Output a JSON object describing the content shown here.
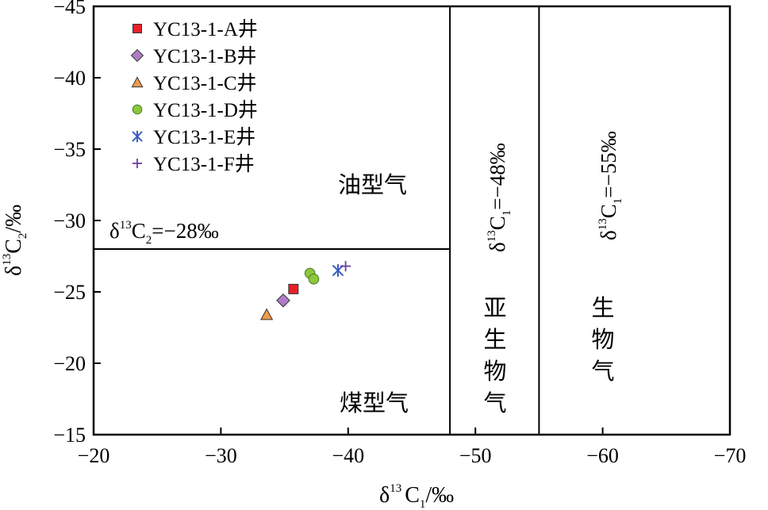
{
  "chart_data": {
    "type": "scatter",
    "xlim": [
      -20,
      -70
    ],
    "ylim": [
      -15,
      -45
    ],
    "x_ticks": [
      "−20",
      "−30",
      "−40",
      "−50",
      "−60",
      "−70"
    ],
    "y_ticks": [
      "−15",
      "−20",
      "−25",
      "−30",
      "−35",
      "−40",
      "−45"
    ],
    "x_tick_values": [
      -20,
      -30,
      -40,
      -50,
      -60,
      -70
    ],
    "y_tick_values": [
      -15,
      -20,
      -25,
      -30,
      -35,
      -40,
      -45
    ],
    "xlabel": {
      "delta": "δ",
      "sup": "13",
      "main": "C",
      "sub": "1",
      "unit": "/‰"
    },
    "ylabel": {
      "delta": "δ",
      "sup": "13",
      "main": "C",
      "sub": "2",
      "unit": "/‰"
    },
    "legend_position": "top-left",
    "series": [
      {
        "name": "YC13-1-A井",
        "marker": "square",
        "color": "#e8202a",
        "points": [
          [
            -35.7,
            -25.2
          ]
        ]
      },
      {
        "name": "YC13-1-B井",
        "marker": "diamond",
        "color": "#b07cc6",
        "points": [
          [
            -34.9,
            -24.4
          ]
        ]
      },
      {
        "name": "YC13-1-C井",
        "marker": "triangle",
        "color": "#f39a4a",
        "points": [
          [
            -33.6,
            -23.4
          ]
        ]
      },
      {
        "name": "YC13-1-D井",
        "marker": "circle",
        "color": "#8dc63f",
        "points": [
          [
            -37.0,
            -26.3
          ],
          [
            -37.3,
            -25.9
          ]
        ]
      },
      {
        "name": "YC13-1-E井",
        "marker": "asterisk",
        "color": "#3a5bbf",
        "points": [
          [
            -39.2,
            -26.5
          ]
        ]
      },
      {
        "name": "YC13-1-F井",
        "marker": "plus",
        "color": "#6a3fa0",
        "points": [
          [
            -39.8,
            -26.8
          ]
        ]
      }
    ],
    "reference_lines": [
      {
        "orientation": "horizontal",
        "value": -28,
        "x_from": -20,
        "x_to": -48,
        "label": {
          "delta": "δ",
          "sup": "13",
          "main": "C",
          "sub": "2",
          "eq": "=−28‰"
        }
      },
      {
        "orientation": "vertical",
        "value": -48,
        "label": {
          "delta": "δ",
          "sup": "13",
          "main": "C",
          "sub": "1",
          "eq": "=−48‰"
        }
      },
      {
        "orientation": "vertical",
        "value": -55,
        "label": {
          "delta": "δ",
          "sup": "13",
          "main": "C",
          "sub": "1",
          "eq": "=−55‰"
        }
      }
    ],
    "regions": {
      "oil_gas": "油型气",
      "coal_gas": "煤型气",
      "sub_bio_gas": [
        "亚",
        "生",
        "物",
        "气"
      ],
      "bio_gas": [
        "生",
        "物",
        "气"
      ]
    },
    "grid": false
  }
}
